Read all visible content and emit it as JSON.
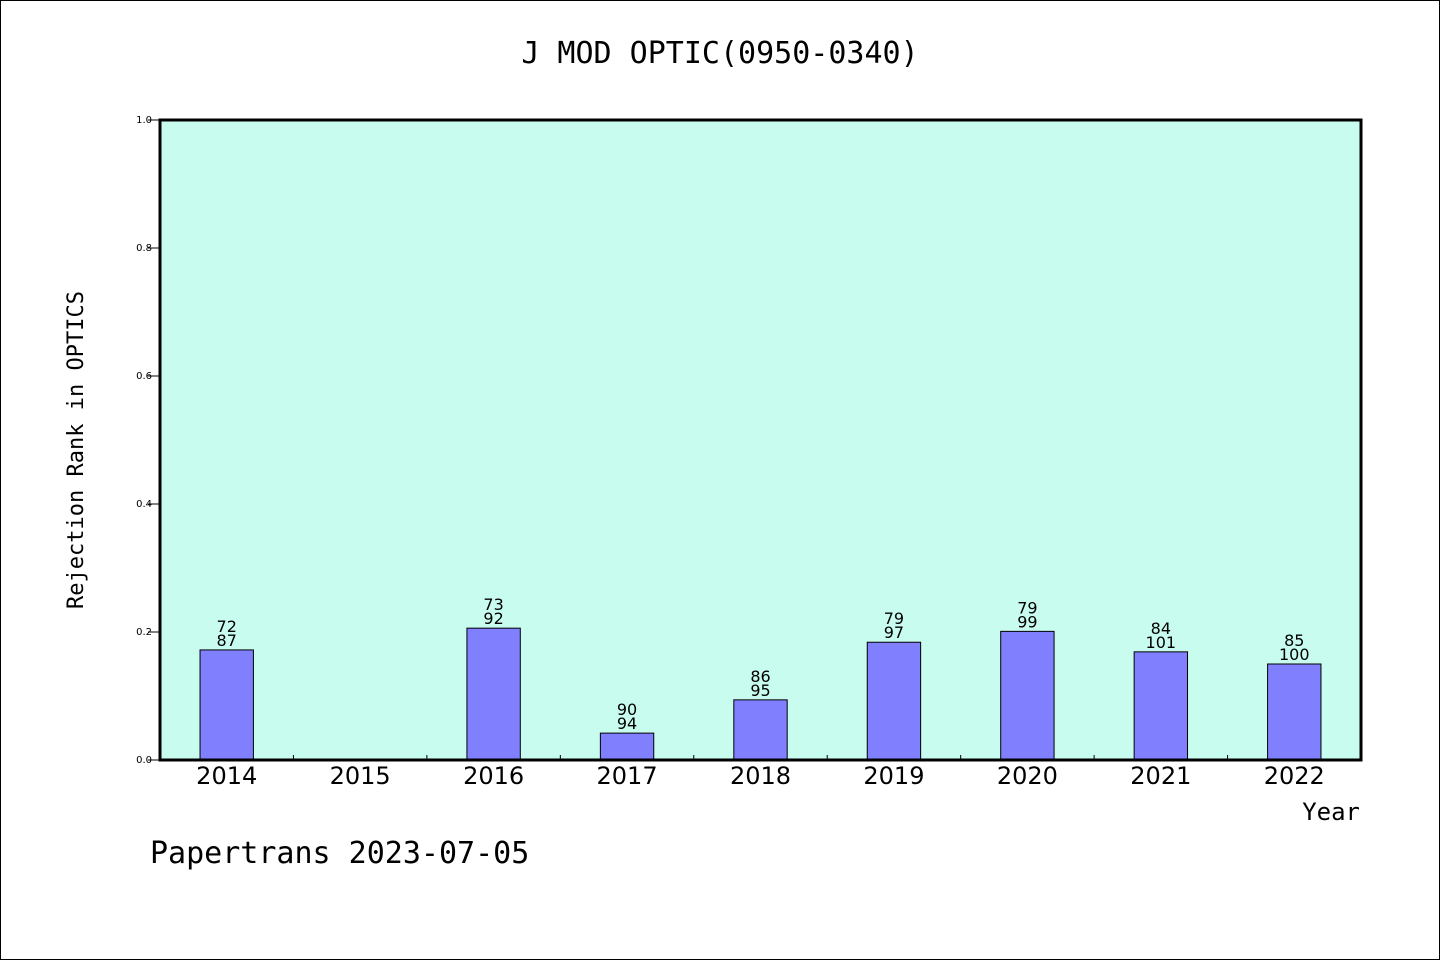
{
  "chart_data": {
    "type": "bar",
    "title": "J MOD OPTIC(0950-0340)",
    "xlabel": "Year",
    "ylabel": "Rejection Rank in OPTICS",
    "ylim": [
      0,
      1.0
    ],
    "yticks": [
      "0.0",
      "0.2",
      "0.4",
      "0.6",
      "0.8",
      "1.0"
    ],
    "grid": false,
    "background_color": "#c8fcee",
    "bar_color": "#8080ff",
    "categories": [
      "2014",
      "2015",
      "2016",
      "2017",
      "2018",
      "2019",
      "2020",
      "2021",
      "2022"
    ],
    "values": [
      0.172,
      null,
      0.206,
      0.042,
      0.094,
      0.184,
      0.201,
      0.169,
      0.15
    ],
    "bar_labels_top": [
      "72",
      "",
      "73",
      "90",
      "86",
      "79",
      "79",
      "84",
      "85"
    ],
    "bar_labels_bottom": [
      "87",
      "",
      "92",
      "94",
      "95",
      "97",
      "99",
      "101",
      "100"
    ]
  },
  "footer": "Papertrans 2023-07-05"
}
